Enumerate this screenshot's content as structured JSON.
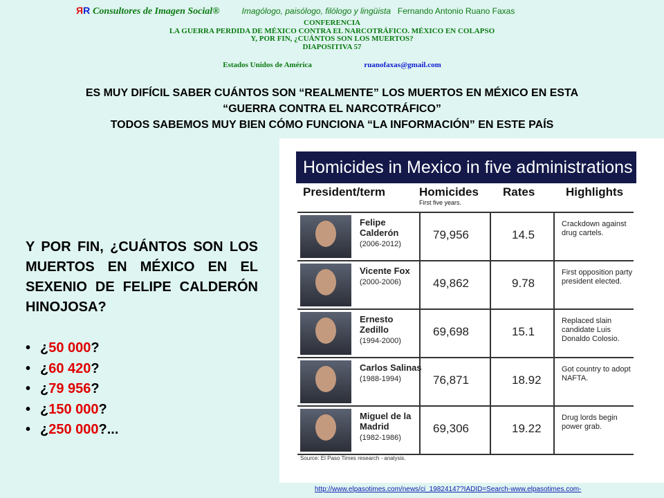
{
  "header": {
    "logo_r1": "Я",
    "logo_r2": "R",
    "company": "Consultores de Imagen Social®",
    "tagline": "Imagólogo, paisólogo, filólogo y lingüista",
    "author": "Fernando Antonio Ruano Faxas",
    "lines": [
      "CONFERENCIA",
      "LA GUERRA PERDIDA DE MÉXICO CONTRA EL NARCOTRÁFICO. MÉXICO EN COLAPSO",
      "Y, POR FIN, ¿CUÁNTOS SON LOS MUERTOS?",
      "DIAPOSITIVA 57"
    ],
    "country": "Estados Unidos de América",
    "email": "ruanofaxas@gmail.com"
  },
  "headline": [
    "ES MUY DIFÍCIL SABER CUÁNTOS SON “REALMENTE” LOS MUERTOS EN MÉXICO EN ESTA",
    "“GUERRA CONTRA EL NARCOTRÁFICO”",
    "TODOS SABEMOS MUY BIEN CÓMO FUNCIONA “LA INFORMACIÓN” EN ESTE PAÍS"
  ],
  "question": "Y POR FIN, ¿CUÁNTOS SON LOS MUERTOS EN MÉXICO EN EL SEXENIO DE FELIPE CALDERÓN HINOJOSA?",
  "options": [
    {
      "pre": "¿",
      "val": "50 000",
      "post": "?"
    },
    {
      "pre": "¿",
      "val": "60 420",
      "post": "?"
    },
    {
      "pre": "¿",
      "val": "79 956",
      "post": "?"
    },
    {
      "pre": "¿",
      "val": "150 000",
      "post": "?"
    },
    {
      "pre": "¿",
      "val": "250 000",
      "post": "?..."
    }
  ],
  "table": {
    "title": "Homicides in Mexico in five administrations",
    "headers": {
      "president": "President/term",
      "homicides": "Homicides",
      "homicides_sub": "First five years.",
      "rates": "Rates",
      "highlights": "Highlights"
    },
    "rows": [
      {
        "name": "Felipe Calderón",
        "term": "(2006-2012)",
        "homicides": "79,956",
        "rate": "14.5",
        "highlight": "Crackdown against drug cartels."
      },
      {
        "name": "Vicente Fox",
        "term": "(2000-2006)",
        "homicides": "49,862",
        "rate": "9.78",
        "highlight": "First opposition party president elected."
      },
      {
        "name": "Ernesto Zedillo",
        "term": "(1994-2000)",
        "homicides": "69,698",
        "rate": "15.1",
        "highlight": "Replaced slain candidate Luis Donaldo Colosio."
      },
      {
        "name": "Carlos Salinas",
        "term": "(1988-1994)",
        "homicides": "76,871",
        "rate": "18.92",
        "highlight": "Got country to adopt NAFTA."
      },
      {
        "name": "Miguel de la Madrid",
        "term": "(1982-1986)",
        "homicides": "69,306",
        "rate": "19.22",
        "highlight": "Drug lords begin power grab."
      }
    ],
    "source": "Source: El Paso Times research - analysis."
  },
  "url": "http://www.elpasotimes.com/news/ci_19824147?IADID=Search-www.elpasotimes.com-",
  "colors": {
    "background": "#dff5f1",
    "header_green": "#0b7a12",
    "answer_red": "#e00000",
    "title_navy": "#14194a"
  }
}
